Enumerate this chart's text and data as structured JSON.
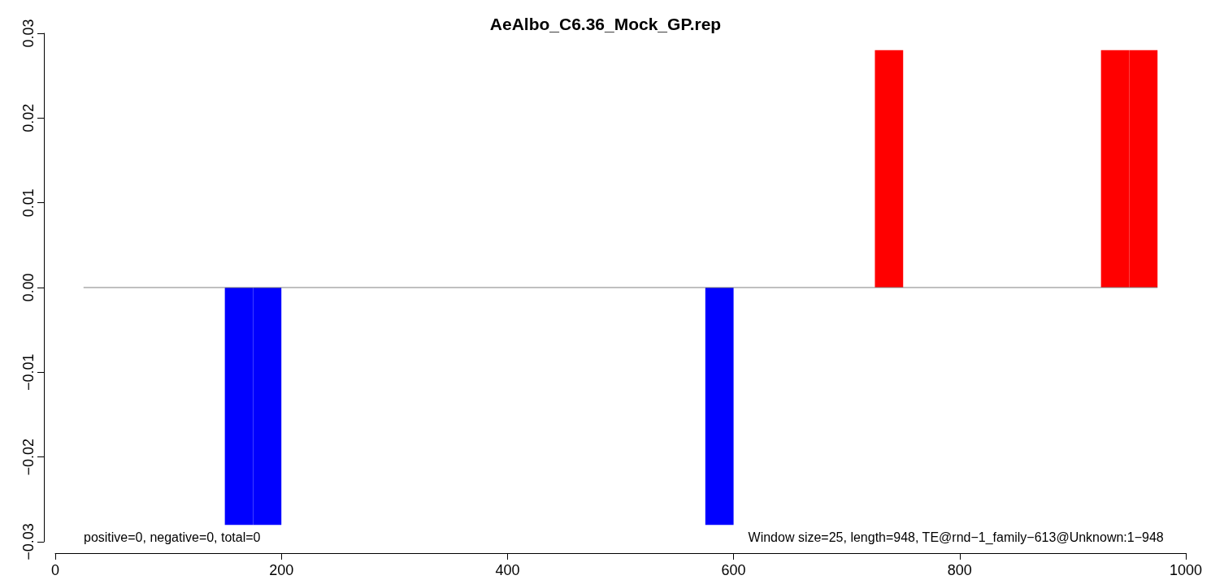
{
  "chart_data": {
    "type": "histogram",
    "title": "AeAlbo_C6.36_Mock_GP.rep",
    "bins": [
      25,
      50,
      75,
      100,
      125,
      150,
      175,
      200,
      225,
      250,
      275,
      300,
      325,
      350,
      375,
      400,
      425,
      450,
      475,
      500,
      525,
      550,
      575,
      600,
      625,
      650,
      675,
      700,
      725,
      750,
      775,
      800,
      825,
      850,
      875,
      900,
      925,
      950,
      975
    ],
    "values": [
      0,
      0,
      0,
      0,
      0,
      -0.028,
      -0.028,
      0,
      0,
      0,
      0,
      0,
      0,
      0,
      0,
      0,
      0,
      0,
      0,
      0,
      0,
      0,
      -0.028,
      0,
      0,
      0,
      0,
      0,
      0.028,
      0,
      0,
      0,
      0,
      0,
      0,
      0,
      0.028,
      0.028
    ],
    "grid": false,
    "colors": [
      "#ff0000",
      "#ff0000",
      "#ff0000",
      "#ff0000",
      "#ff0000",
      "#0000ff",
      "#0000ff",
      "#ff0000",
      "#ff0000",
      "#ff0000",
      "#ff0000",
      "#ff0000",
      "#ff0000",
      "#ff0000",
      "#ff0000",
      "#ff0000",
      "#ff0000",
      "#ff0000",
      "#ff0000",
      "#ff0000",
      "#ff0000",
      "#ff0000",
      "#0000ff",
      "#ff0000",
      "#ff0000",
      "#ff0000",
      "#ff0000",
      "#ff0000",
      "#ff0000",
      "#ff0000",
      "#ff0000",
      "#ff0000",
      "#ff0000",
      "#ff0000",
      "#ff0000",
      "#ff0000",
      "#ff0000",
      "#ff0000"
    ],
    "series": [
      {
        "type": "line",
        "color": "#808080",
        "x": [
          25,
          975
        ],
        "values": [
          0,
          0
        ]
      }
    ],
    "xlim": [
      0,
      1000
    ],
    "xticks": [
      0,
      200,
      400,
      600,
      800,
      1000
    ],
    "ylim": [
      -0.03,
      0.03
    ],
    "yticks": [
      {
        "value": -0.03,
        "label": "−0.03"
      },
      {
        "value": -0.02,
        "label": "−0.02"
      },
      {
        "value": -0.01,
        "label": "−0.01"
      },
      {
        "value": 0,
        "label": "0.00"
      },
      {
        "value": 0.01,
        "label": "0.01"
      },
      {
        "value": 0.02,
        "label": "0.02"
      },
      {
        "value": 0.03,
        "label": "0.03"
      }
    ],
    "annotations": [
      "positive=0, negative=0, total=0",
      "Window size=25, length=948, TE@rnd−1_family−613@Unknown:1−948"
    ]
  }
}
